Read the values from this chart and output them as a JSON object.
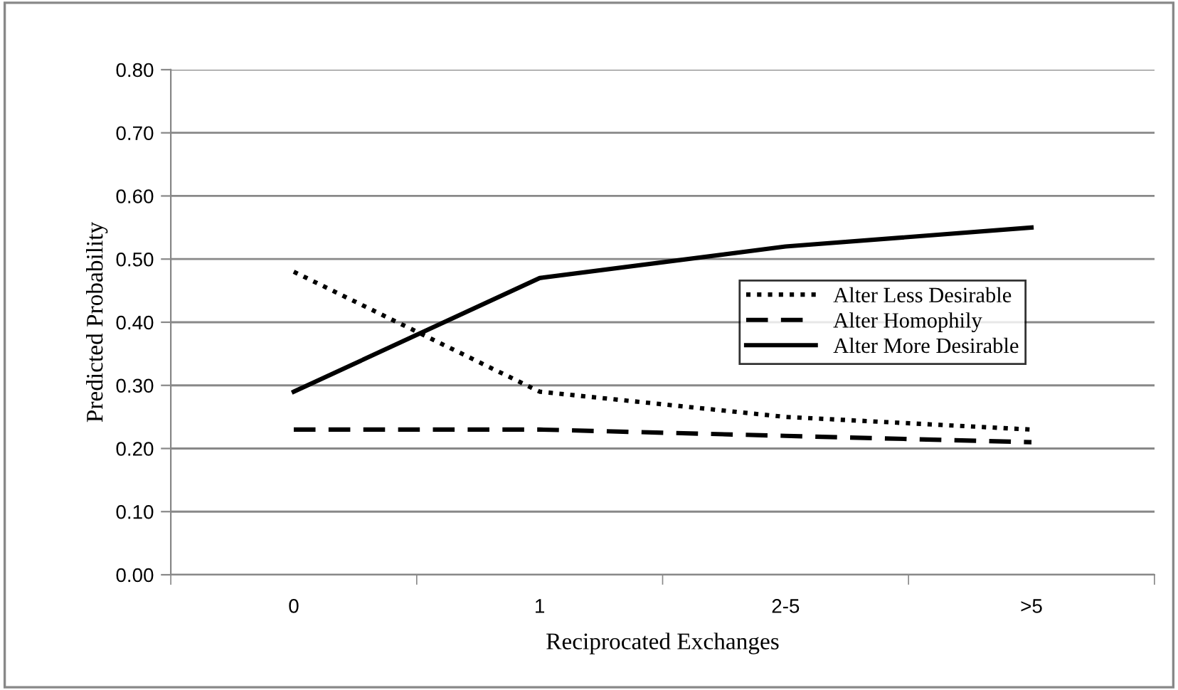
{
  "chart_data": {
    "type": "line",
    "xlabel": "Reciprocated Exchanges",
    "ylabel": "Predicted Probability",
    "categories": [
      "0",
      "1",
      "2-5",
      ">5"
    ],
    "series": [
      {
        "name": "Alter Less Desirable",
        "color": "#000000",
        "line_style": "dotted",
        "values": [
          0.48,
          0.29,
          0.25,
          0.23
        ]
      },
      {
        "name": "Alter Homophily",
        "color": "#000000",
        "line_style": "dashed",
        "values": [
          0.23,
          0.23,
          0.22,
          0.21
        ]
      },
      {
        "name": "Alter More Desirable",
        "color": "#000000",
        "line_style": "solid",
        "values": [
          0.29,
          0.47,
          0.52,
          0.55
        ]
      }
    ],
    "ylim": [
      0,
      0.8
    ],
    "yticks": [
      {
        "value": 0,
        "label": "0.00"
      },
      {
        "value": 0.1,
        "label": "0.10"
      },
      {
        "value": 0.2,
        "label": "0.20"
      },
      {
        "value": 0.3,
        "label": "0.30"
      },
      {
        "value": 0.4,
        "label": "0.40"
      },
      {
        "value": 0.5,
        "label": "0.50"
      },
      {
        "value": 0.6,
        "label": "0.60"
      },
      {
        "value": 0.7,
        "label": "0.70"
      },
      {
        "value": 0.8,
        "label": "0.80"
      }
    ],
    "grid": "y",
    "legend": "right",
    "marker": "none"
  }
}
